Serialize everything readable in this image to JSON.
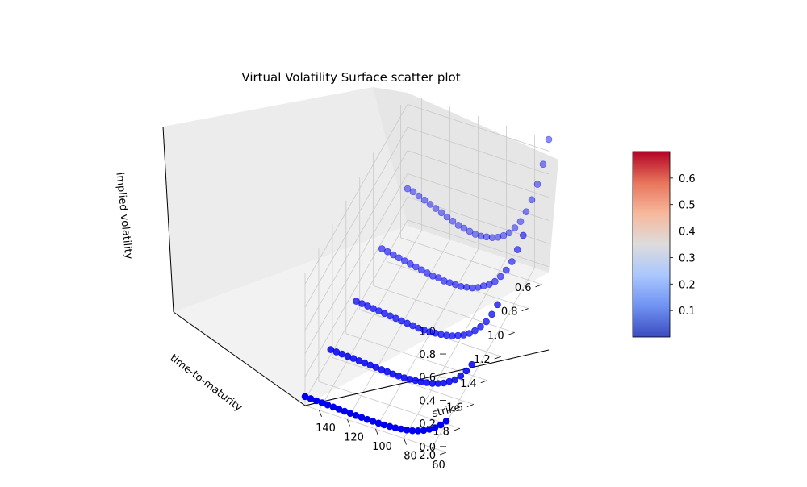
{
  "chart_data": {
    "type": "scatter",
    "subtype": "3d-scatter",
    "title": "Virtual Volatility Surface scatter plot",
    "xlabel": "strike",
    "ylabel": "time-to-maturity",
    "zlabel": "implied volatility",
    "x_ticks": [
      "60",
      "80",
      "100",
      "120",
      "140"
    ],
    "y_ticks": [
      "0.6",
      "0.8",
      "1.0",
      "1.2",
      "1.4",
      "1.6",
      "1.8",
      "2.0"
    ],
    "z_ticks": [
      "0.0",
      "0.2",
      "0.4",
      "0.6",
      "0.8",
      "1.0"
    ],
    "xlim": [
      50,
      150
    ],
    "ylim": [
      0.5,
      2.0
    ],
    "zlim": [
      -0.05,
      1.1
    ],
    "grid": true,
    "colormap": "coolwarm",
    "colorbar": {
      "ticks": [
        "0.1",
        "0.2",
        "0.3",
        "0.4",
        "0.5",
        "0.6"
      ],
      "range": [
        0.0,
        0.7
      ],
      "colors": [
        "#3b4cc0",
        "#6f92f3",
        "#aac7fd",
        "#dddcdc",
        "#f7b89c",
        "#e7745b",
        "#b40426"
      ]
    },
    "point_color": "#0000ee",
    "strike_values": [
      50,
      54,
      58,
      62,
      66,
      70,
      74,
      78,
      82,
      86,
      90,
      94,
      98,
      102,
      106,
      110,
      114,
      118,
      122,
      126,
      130,
      134,
      138,
      142,
      146,
      150
    ],
    "series": [
      {
        "maturity": 0.5,
        "implied_vol": [
          1.1,
          0.87,
          0.68,
          0.53,
          0.41,
          0.31,
          0.24,
          0.18,
          0.14,
          0.11,
          0.09,
          0.08,
          0.07,
          0.07,
          0.08,
          0.09,
          0.1,
          0.12,
          0.14,
          0.16,
          0.18,
          0.2,
          0.22,
          0.24,
          0.26,
          0.27
        ]
      },
      {
        "maturity": 0.875,
        "implied_vol": [
          0.66,
          0.52,
          0.4,
          0.31,
          0.24,
          0.18,
          0.14,
          0.11,
          0.08,
          0.06,
          0.05,
          0.04,
          0.04,
          0.04,
          0.04,
          0.05,
          0.05,
          0.06,
          0.07,
          0.08,
          0.09,
          0.1,
          0.11,
          0.12,
          0.13,
          0.14
        ]
      },
      {
        "maturity": 1.25,
        "implied_vol": [
          0.45,
          0.35,
          0.27,
          0.21,
          0.16,
          0.12,
          0.09,
          0.07,
          0.05,
          0.04,
          0.03,
          0.025,
          0.02,
          0.02,
          0.02,
          0.025,
          0.03,
          0.035,
          0.04,
          0.045,
          0.05,
          0.055,
          0.06,
          0.065,
          0.07,
          0.075
        ]
      },
      {
        "maturity": 1.625,
        "implied_vol": [
          0.32,
          0.25,
          0.19,
          0.14,
          0.11,
          0.08,
          0.06,
          0.045,
          0.035,
          0.025,
          0.02,
          0.015,
          0.012,
          0.012,
          0.012,
          0.015,
          0.018,
          0.021,
          0.024,
          0.027,
          0.03,
          0.033,
          0.036,
          0.039,
          0.042,
          0.045
        ]
      },
      {
        "maturity": 2.0,
        "implied_vol": [
          0.22,
          0.17,
          0.13,
          0.1,
          0.075,
          0.055,
          0.04,
          0.03,
          0.022,
          0.016,
          0.012,
          0.009,
          0.008,
          0.008,
          0.008,
          0.009,
          0.01,
          0.012,
          0.014,
          0.016,
          0.018,
          0.02,
          0.022,
          0.024,
          0.026,
          0.028
        ]
      }
    ]
  }
}
